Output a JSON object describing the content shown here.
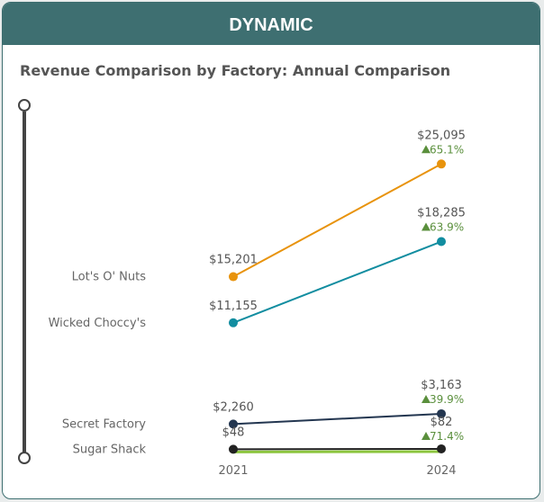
{
  "header": {
    "title": "DYNAMIC"
  },
  "chart_data": {
    "type": "line",
    "title": "Revenue Comparison by Factory: Annual Comparison",
    "categories": [
      "2021",
      "2024"
    ],
    "series": [
      {
        "name": "Lot's O' Nuts",
        "values": [
          15201,
          25095
        ],
        "labels": [
          "$15,201",
          "$25,095"
        ],
        "change": "65.1%",
        "color": "#E8930C"
      },
      {
        "name": "Wicked Choccy's",
        "values": [
          11155,
          18285
        ],
        "labels": [
          "$11,155",
          "$18,285"
        ],
        "change": "63.9%",
        "color": "#118DA0"
      },
      {
        "name": "Secret Factory",
        "values": [
          2260,
          3163
        ],
        "labels": [
          "$2,260",
          "$3,163"
        ],
        "change": "39.9%",
        "color": "#233650"
      },
      {
        "name": "Sugar Shack",
        "values": [
          48,
          82
        ],
        "labels": [
          "$48",
          "$82"
        ],
        "change": "71.4%",
        "color": "#222222"
      }
    ],
    "up_color": "#5A8F3C",
    "grid": false,
    "legend": "none"
  },
  "slider": {
    "type": "vertical-range"
  }
}
